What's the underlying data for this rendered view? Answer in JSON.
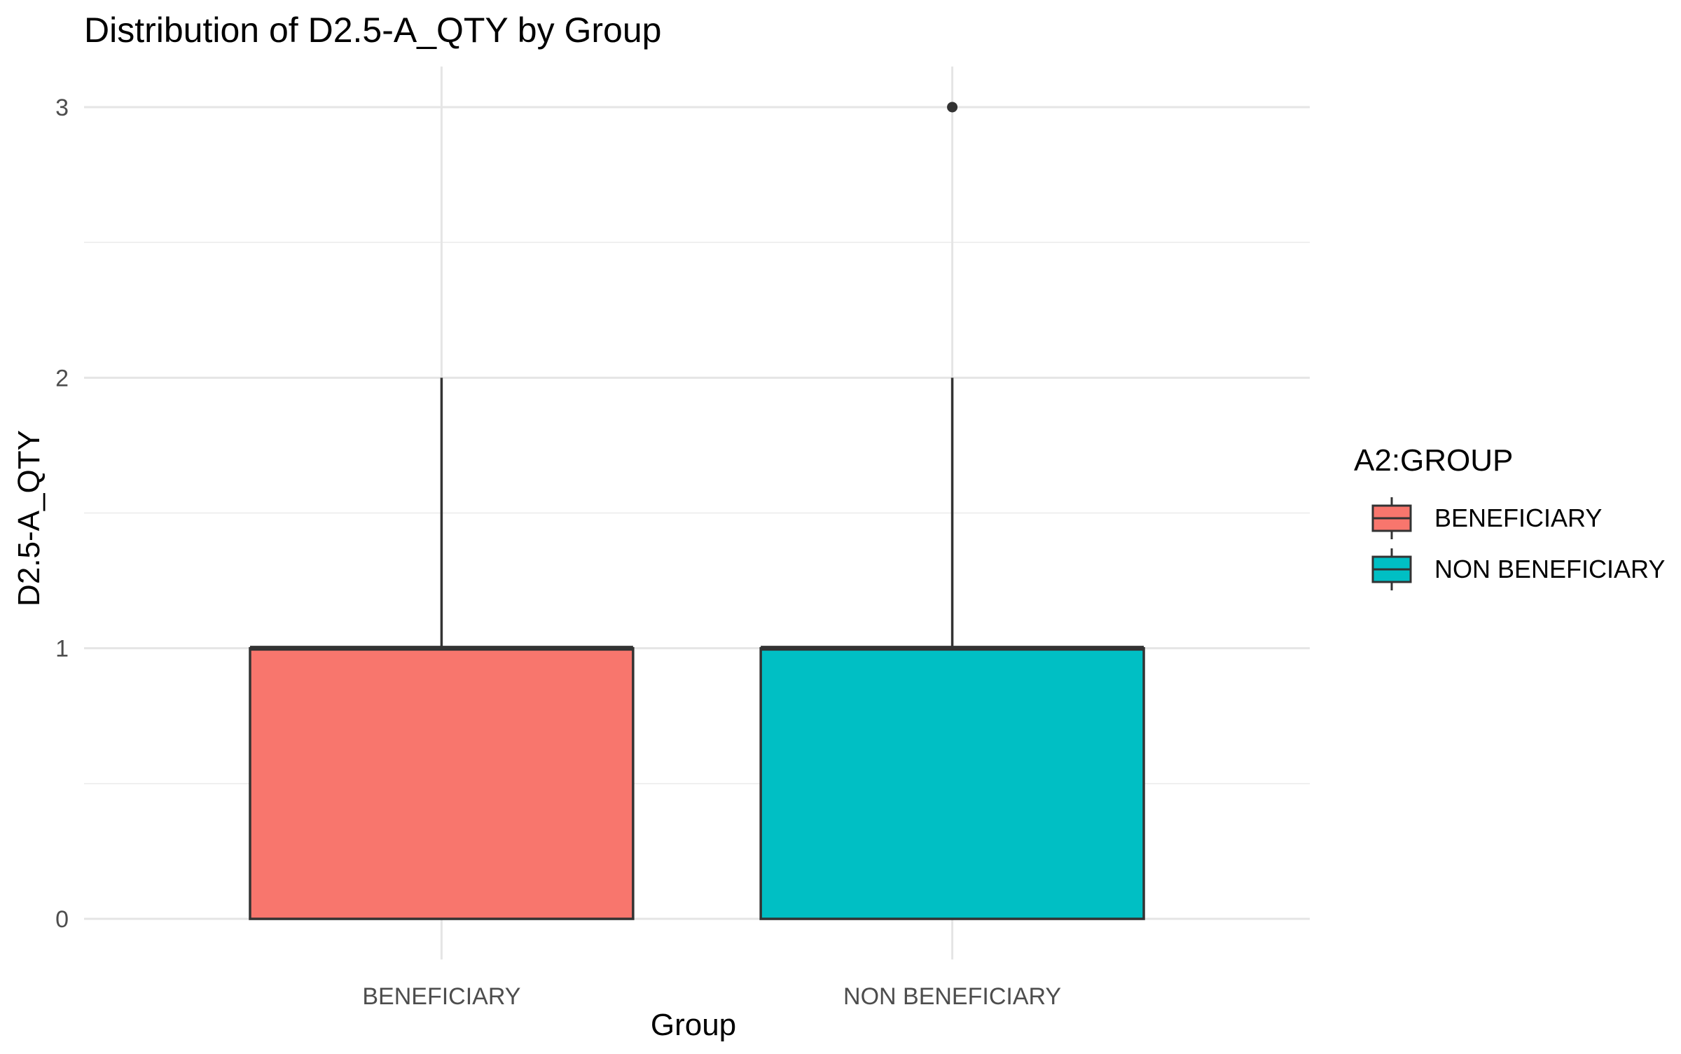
{
  "chart_data": {
    "type": "boxplot",
    "title": "Distribution of D2.5-A_QTY by Group",
    "xlabel": "Group",
    "ylabel": "D2.5-A_QTY",
    "ylim": [
      -0.15,
      3.15
    ],
    "yticks": [
      0,
      1,
      2,
      3
    ],
    "grid": true,
    "categories": [
      "BENEFICIARY",
      "NON BENEFICIARY"
    ],
    "boxes": [
      {
        "category": "BENEFICIARY",
        "whisker_low": 0,
        "q1": 0,
        "median": 1,
        "q3": 1,
        "whisker_high": 2,
        "outliers": [],
        "color": "#F8766D"
      },
      {
        "category": "NON BENEFICIARY",
        "whisker_low": 0,
        "q1": 0,
        "median": 1,
        "q3": 1,
        "whisker_high": 2,
        "outliers": [
          3
        ],
        "color": "#00BFC4"
      }
    ],
    "legend": {
      "title": "A2:GROUP",
      "position": "right",
      "items": [
        {
          "label": "BENEFICIARY",
          "color": "#F8766D"
        },
        {
          "label": "NON BENEFICIARY",
          "color": "#00BFC4"
        }
      ]
    }
  }
}
